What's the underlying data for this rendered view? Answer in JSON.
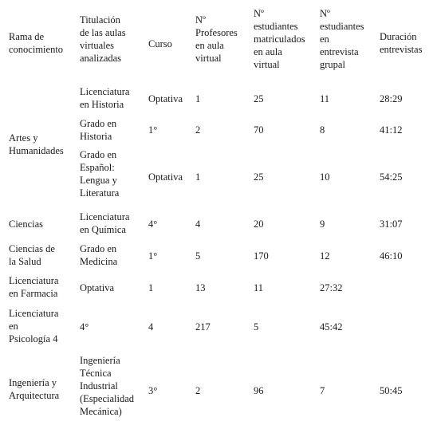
{
  "table": {
    "headers": [
      "Rama de\nconocimiento",
      "Titulación\nde las aulas\nvirtuales\nanalizadas",
      "Curso",
      "Nº\nProfesores\n en aula\nvirtual",
      "Nº\nestudiantes\nmatriculados\n en aula\nvirtual",
      "Nº\nestudiantes\n en\nentrevista\ngrupal",
      "Duración\nentrevistas"
    ],
    "groups": {
      "artes": "Artes y\nHumanidades",
      "ingenieria": "Ingeniería y\nArquitectura"
    },
    "rows": [
      [
        "",
        "Licenciatura\nen Historia",
        "Optativa",
        "1",
        "25",
        "11",
        "28:29"
      ],
      [
        "",
        "Grado en\nHistoria",
        "1°",
        "2",
        "70",
        "8",
        "41:12"
      ],
      [
        "",
        "Grado en\nEspañol:\nLengua y\nLiteratura",
        "Optativa",
        "1",
        "25",
        "10",
        "54:25"
      ],
      [
        "Ciencias",
        "Licenciatura\nen Química",
        "4°",
        "4",
        "20",
        "9",
        "31:07"
      ],
      [
        "Ciencias de\nla Salud",
        "Grado en\nMedicina",
        "1°",
        "5",
        "170",
        "12",
        "46:10"
      ],
      [
        "Licenciatura\nen Farmacia",
        "Optativa",
        "1",
        "13",
        "11",
        "27:32",
        ""
      ],
      [
        "Licenciatura\nen\nPsicología 4",
        "4°",
        "4",
        "217",
        "5",
        "45:42",
        ""
      ],
      [
        "",
        "Ingeniería\nTécnica\nIndustrial\n(Especialidad\n Mecánica)",
        "3°",
        "2",
        "96",
        "7",
        "50:45"
      ]
    ]
  }
}
